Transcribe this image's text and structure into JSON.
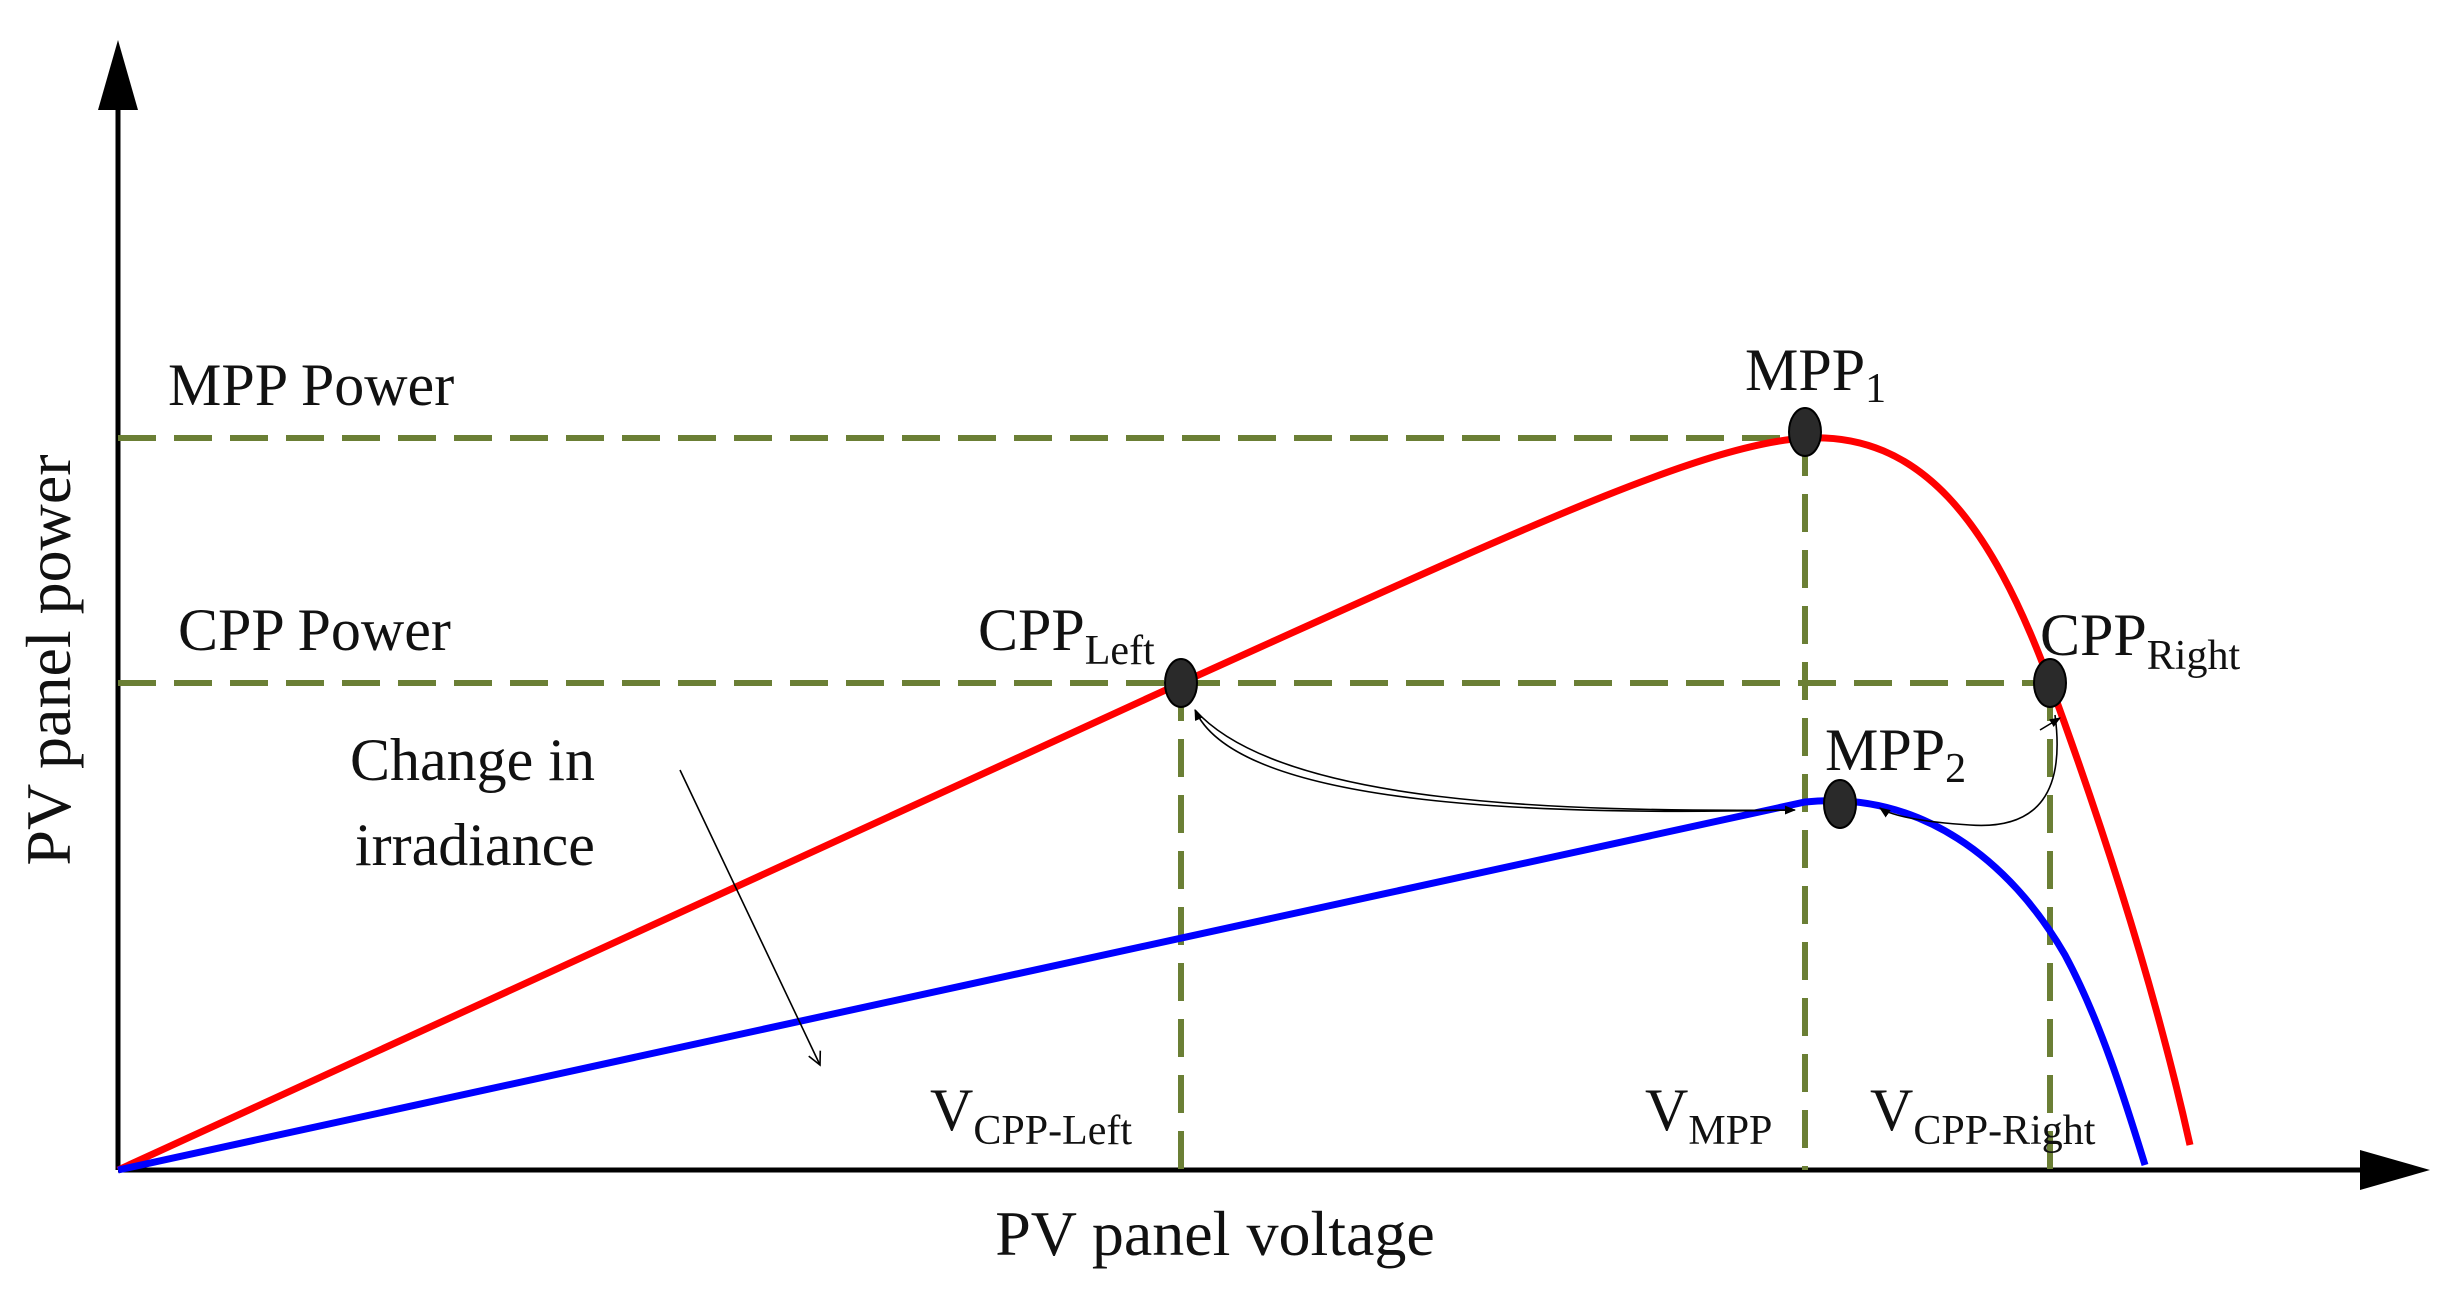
{
  "axes": {
    "x_label": "PV panel voltage",
    "y_label": "PV panel power"
  },
  "levels": {
    "mpp_power": "MPP Power",
    "cpp_power": "CPP Power"
  },
  "points": {
    "mpp1": {
      "main": "MPP",
      "sub": "1"
    },
    "mpp2": {
      "main": "MPP",
      "sub": "2"
    },
    "cpp_left": {
      "main": "CPP",
      "sub": "Left"
    },
    "cpp_right": {
      "main": "CPP",
      "sub": "Right"
    }
  },
  "voltages": {
    "v_cpp_left": {
      "main": "V",
      "sub": "CPP-Left"
    },
    "v_mpp": {
      "main": "V",
      "sub": "MPP"
    },
    "v_cpp_right": {
      "main": "V",
      "sub": "CPP-Right"
    }
  },
  "annotation": {
    "line1": "Change in",
    "line2": "irradiance"
  },
  "colors": {
    "curve_high": "#ff0000",
    "curve_low": "#0000ff",
    "guides": "#6b7f35",
    "axes": "#000000",
    "markers": "#2a2a2a"
  }
}
